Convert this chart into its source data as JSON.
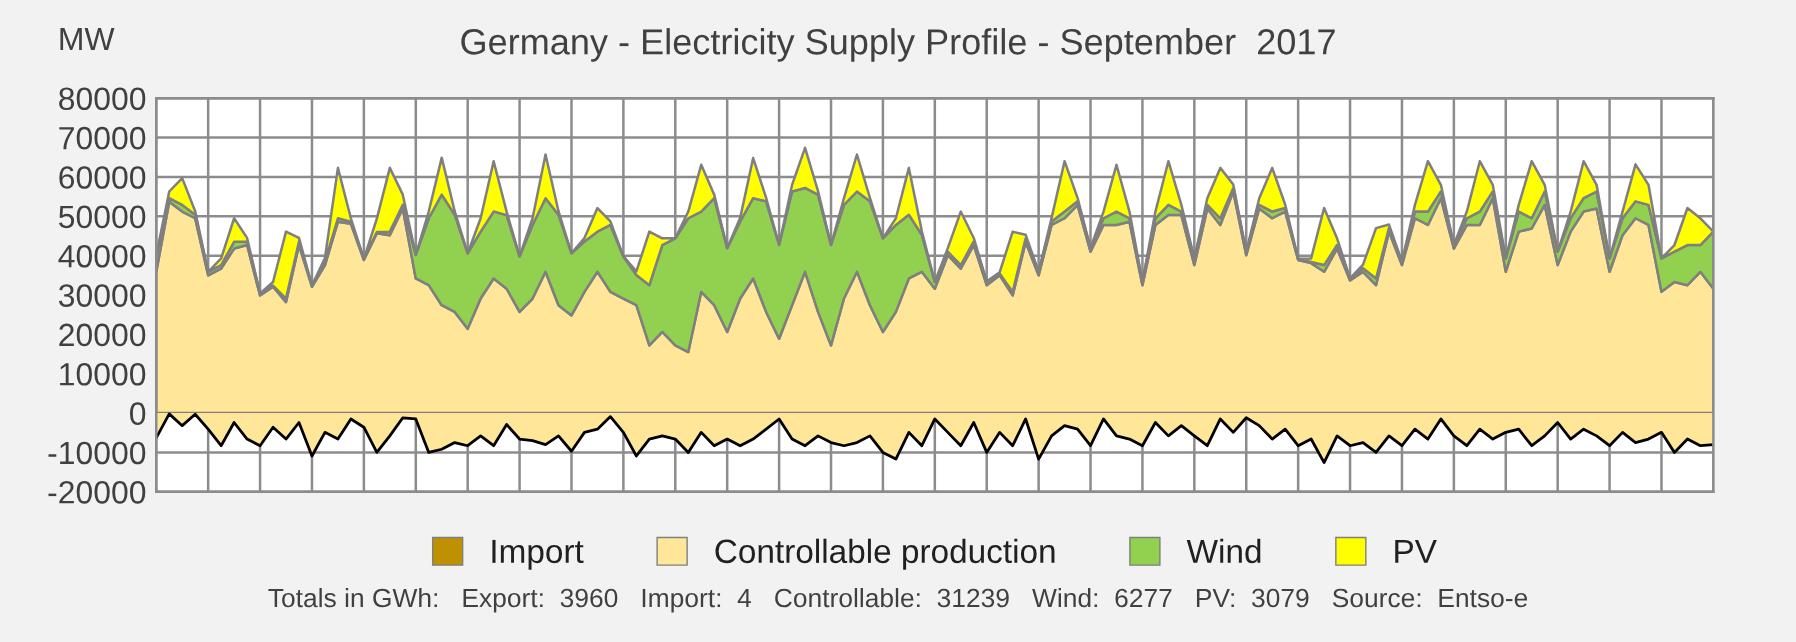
{
  "chart_data": {
    "type": "area",
    "title": "Germany - Electricity Supply Profile - September  2017",
    "ylabel": "MW",
    "annotations": [
      "Totals in GWh:   Export:  3960   Import:  4   Controllable:  31239   Wind:  6277   PV:  3079   Source:  Entso-e"
    ],
    "categories": [
      null,
      null,
      null,
      null,
      null,
      null,
      null,
      null,
      null,
      null,
      null,
      null,
      null,
      null,
      null,
      null,
      null,
      null,
      null,
      null,
      null,
      null,
      null,
      null,
      null,
      null,
      null,
      null,
      null,
      null,
      null,
      null,
      null,
      null,
      null,
      null,
      null,
      null,
      null,
      null,
      null,
      null,
      null,
      null,
      null,
      null,
      null,
      null,
      null,
      null,
      null,
      null,
      null,
      null,
      null,
      null,
      null,
      null,
      null,
      null,
      null,
      null,
      null,
      null,
      null,
      null,
      null,
      null,
      null,
      null,
      null,
      null,
      null,
      null,
      null,
      null,
      null,
      null,
      null,
      null,
      null,
      null,
      null,
      null,
      null,
      null,
      null,
      null,
      null,
      null,
      null,
      null,
      null,
      null,
      null,
      null,
      null,
      null,
      null,
      null,
      null,
      null,
      null,
      null,
      null,
      null,
      null,
      null,
      null,
      null,
      null,
      null,
      null,
      null,
      null,
      null,
      null,
      null,
      null,
      null,
      null
    ],
    "stacked": true,
    "ylim": [
      -20000,
      80000
    ],
    "yticks": [
      -20000,
      -10000,
      0,
      10000,
      20000,
      30000,
      40000,
      50000,
      60000,
      70000,
      80000
    ],
    "grid": true,
    "legend": "bottom",
    "series": [
      {
        "name": "Import",
        "color": "#bf9000",
        "values": [
          null,
          null,
          null,
          null,
          null,
          null,
          null,
          null,
          null,
          null,
          null,
          null,
          null,
          null,
          null,
          null,
          null,
          null,
          null,
          null,
          null,
          null,
          null,
          null,
          null,
          null,
          null,
          null,
          null,
          null,
          null,
          null,
          null,
          null,
          null,
          null,
          null,
          null,
          null,
          null,
          null,
          null,
          null,
          null,
          null,
          null,
          null,
          null,
          null,
          null,
          null,
          null,
          null,
          null,
          null,
          null,
          null,
          null,
          null,
          null,
          null,
          null,
          null,
          null,
          null,
          null,
          null,
          null,
          null,
          null,
          null,
          null,
          null,
          null,
          null,
          null,
          null,
          null,
          null,
          null,
          null,
          null,
          null,
          null,
          null,
          null,
          null,
          null,
          null,
          null,
          null,
          null,
          null,
          null,
          null,
          null,
          null,
          null,
          null,
          null,
          null,
          null,
          null,
          null,
          null,
          null,
          null,
          null,
          null,
          null,
          null,
          null,
          null,
          null,
          null,
          null,
          null,
          null,
          null,
          null,
          null
        ]
      },
      {
        "name": "Controllable production",
        "color": "#ffe699",
        "values": [
          35900,
          53700,
          51200,
          49500,
          35000,
          36700,
          41800,
          42700,
          29900,
          32100,
          28200,
          42700,
          32100,
          37600,
          48600,
          48100,
          38900,
          45700,
          45200,
          52000,
          34200,
          32500,
          27400,
          25700,
          21400,
          29100,
          34200,
          31600,
          25700,
          29100,
          35900,
          27400,
          24800,
          30800,
          35900,
          30800,
          29100,
          27400,
          17200,
          20600,
          17200,
          15500,
          30800,
          27400,
          20600,
          29100,
          34200,
          25700,
          18900,
          27400,
          35900,
          25700,
          17200,
          29100,
          35900,
          27400,
          20600,
          25700,
          34200,
          35900,
          31600,
          40100,
          36700,
          42700,
          32500,
          35000,
          29900,
          43500,
          35000,
          47800,
          49500,
          52900,
          41000,
          47800,
          47800,
          48600,
          32500,
          47800,
          50300,
          50300,
          37600,
          52000,
          47800,
          56300,
          40100,
          52000,
          49500,
          51200,
          38900,
          38100,
          35900,
          41800,
          33700,
          35900,
          32500,
          46100,
          37600,
          49500,
          47800,
          54600,
          41800,
          47800,
          47800,
          54600,
          35900,
          46100,
          46900,
          52900,
          37600,
          46100,
          51200,
          52000,
          35900,
          45200,
          49500,
          47800,
          30800,
          33300,
          32500,
          35900,
          31600
        ]
      },
      {
        "name": "Wind",
        "color": "#92d050",
        "values": [
          4200,
          900,
          1700,
          900,
          900,
          900,
          1700,
          900,
          500,
          300,
          900,
          900,
          300,
          900,
          900,
          500,
          300,
          300,
          900,
          900,
          6000,
          17000,
          28100,
          24700,
          19200,
          17000,
          17000,
          18700,
          14100,
          18700,
          18700,
          23000,
          15800,
          12800,
          10200,
          17000,
          10700,
          7700,
          15300,
          22100,
          27200,
          34000,
          20400,
          27200,
          21300,
          19600,
          20400,
          28100,
          23800,
          28900,
          21300,
          29800,
          25500,
          23800,
          20400,
          26400,
          23800,
          22100,
          16200,
          9400,
          1700,
          900,
          900,
          900,
          900,
          500,
          900,
          900,
          900,
          900,
          1700,
          900,
          900,
          1700,
          3400,
          900,
          900,
          1700,
          2600,
          900,
          1700,
          900,
          1700,
          900,
          900,
          900,
          1700,
          900,
          300,
          300,
          1700,
          900,
          500,
          900,
          1700,
          900,
          900,
          1700,
          3400,
          1700,
          900,
          1700,
          3400,
          1700,
          3400,
          5100,
          2600,
          3400,
          3400,
          3400,
          3400,
          4300,
          3400,
          4300,
          4300,
          5100,
          8500,
          7700,
          10200,
          6800,
          14500
        ]
      },
      {
        "name": "PV",
        "color": "#ffff00",
        "values": [
          0,
          1700,
          6800,
          900,
          0,
          1700,
          6000,
          900,
          0,
          900,
          17000,
          900,
          0,
          900,
          12800,
          900,
          0,
          3400,
          16200,
          2600,
          0,
          1700,
          9400,
          900,
          0,
          3400,
          12800,
          900,
          0,
          1700,
          11100,
          900,
          0,
          900,
          6000,
          900,
          0,
          900,
          13600,
          1700,
          0,
          1700,
          11900,
          900,
          0,
          900,
          10200,
          900,
          0,
          1700,
          10200,
          900,
          0,
          1700,
          9400,
          900,
          0,
          1700,
          11900,
          900,
          0,
          900,
          13600,
          900,
          0,
          300,
          15300,
          900,
          0,
          900,
          12800,
          900,
          0,
          1700,
          11900,
          1700,
          0,
          1700,
          11100,
          1700,
          0,
          1700,
          12800,
          900,
          0,
          1700,
          11100,
          900,
          0,
          900,
          14500,
          1700,
          0,
          900,
          12800,
          900,
          0,
          1700,
          12800,
          1700,
          0,
          1700,
          12800,
          1700,
          0,
          1700,
          14500,
          1700,
          0,
          1700,
          9400,
          1700,
          0,
          1700,
          9400,
          5100,
          0,
          1700,
          9400,
          6800,
          0
        ]
      },
      {
        "type": "line",
        "color": "#000000",
        "values": [
          -6300,
          -200,
          -3200,
          -300,
          -4100,
          -8300,
          -2400,
          -6600,
          -8300,
          -3600,
          -6600,
          -2400,
          -10900,
          -4900,
          -6600,
          -1500,
          -3600,
          -10000,
          -5800,
          -1200,
          -1500,
          -10000,
          -9200,
          -7500,
          -8300,
          -5800,
          -8300,
          -2900,
          -6600,
          -7000,
          -8000,
          -5800,
          -9700,
          -4900,
          -4100,
          -900,
          -4900,
          -10900,
          -6600,
          -5800,
          -6600,
          -10000,
          -4900,
          -8300,
          -6600,
          -8300,
          -6600,
          -4100,
          -1500,
          -6600,
          -8300,
          -5800,
          -7500,
          -8300,
          -7500,
          -5800,
          -10000,
          -11700,
          -4900,
          -8300,
          -1500,
          -4900,
          -8300,
          -2400,
          -10000,
          -4900,
          -8300,
          -1500,
          -11700,
          -5800,
          -3200,
          -4100,
          -8300,
          -1500,
          -5800,
          -6600,
          -8300,
          -2400,
          -5800,
          -3200,
          -5800,
          -8300,
          -1500,
          -4900,
          -1200,
          -3200,
          -6600,
          -4100,
          -8300,
          -6600,
          -12600,
          -5800,
          -8300,
          -7500,
          -10000,
          -5800,
          -8300,
          -4100,
          -6600,
          -1500,
          -5800,
          -8300,
          -4100,
          -6600,
          -4900,
          -4100,
          -8300,
          -5800,
          -2400,
          -6600,
          -4100,
          -5800,
          -8300,
          -4900,
          -7500,
          -6600,
          -4900,
          -10000,
          -6600,
          -8300,
          -8000
        ]
      }
    ]
  }
}
